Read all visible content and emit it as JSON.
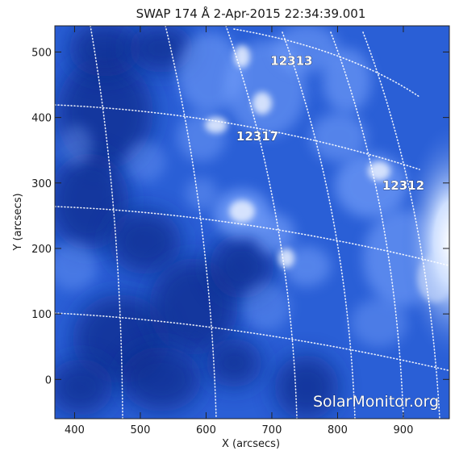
{
  "title": "SWAP 174 Å  2-Apr-2015 22:34:39.001",
  "colors": {
    "deep": "#0b2a8c",
    "mid": "#2a5fd6",
    "light": "#7fa8ff",
    "bright": "#e9f1ff"
  },
  "x_axis": {
    "label": "X (arcsecs)",
    "range": [
      370,
      970
    ],
    "ticks": [
      {
        "value": 400,
        "label": "400"
      },
      {
        "value": 500,
        "label": "500"
      },
      {
        "value": 600,
        "label": "600"
      },
      {
        "value": 700,
        "label": "700"
      },
      {
        "value": 800,
        "label": "800"
      },
      {
        "value": 900,
        "label": "900"
      }
    ]
  },
  "y_axis": {
    "label": "Y (arcsecs)",
    "range": [
      -60,
      540
    ],
    "ticks": [
      {
        "value": 0,
        "label": "0"
      },
      {
        "value": 100,
        "label": "100"
      },
      {
        "value": 200,
        "label": "200"
      },
      {
        "value": 300,
        "label": "300"
      },
      {
        "value": 400,
        "label": "400"
      },
      {
        "value": 500,
        "label": "500"
      }
    ]
  },
  "regions": [
    {
      "label": "12313",
      "x": 730,
      "y": 480
    },
    {
      "label": "12317",
      "x": 678,
      "y": 365
    },
    {
      "label": "12312",
      "x": 900,
      "y": 290
    }
  ],
  "watermark": "SolarMonitor.org"
}
